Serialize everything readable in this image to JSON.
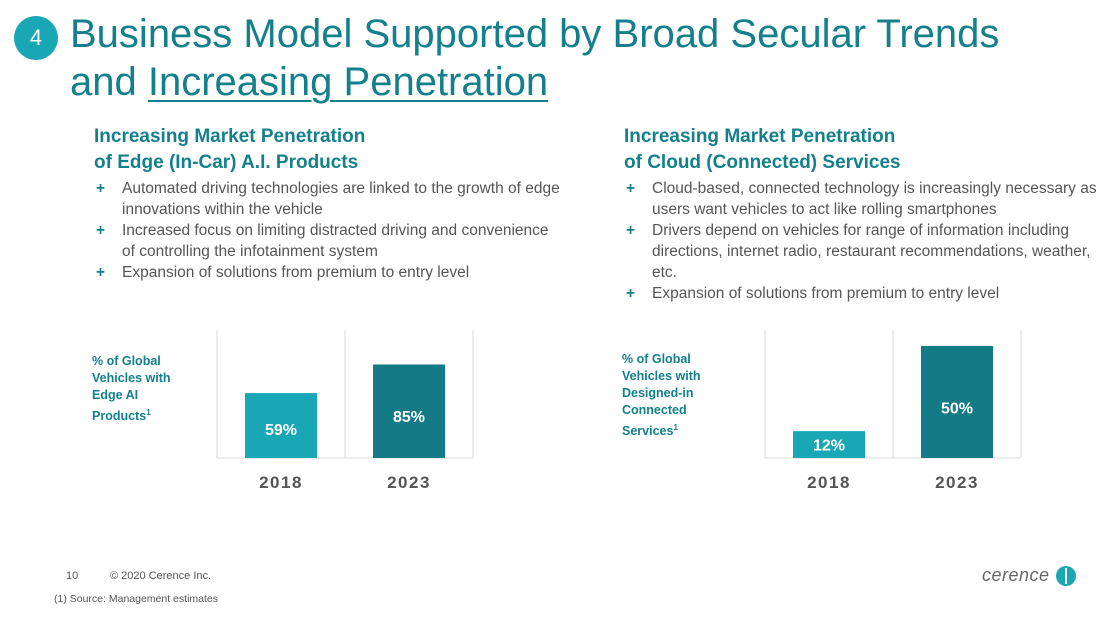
{
  "badge": "4",
  "title": {
    "line1": "Business Model Supported by Broad Secular Trends",
    "line2_prefix": "and ",
    "line2_underlined": "Increasing Penetration"
  },
  "left": {
    "heading1": "Increasing Market Penetration",
    "heading2": "of Edge (In-Car) A.I. Products",
    "bullets": [
      "Automated driving technologies are linked to the growth of edge innovations within the vehicle",
      "Increased focus on limiting distracted driving and convenience of controlling the infotainment system",
      "Expansion of solutions from premium to entry level"
    ],
    "chart_label": [
      "% of Global",
      "Vehicles with",
      "Edge AI",
      "Products"
    ]
  },
  "right": {
    "heading1": "Increasing Market Penetration",
    "heading2": "of Cloud (Connected) Services",
    "bullets": [
      "Cloud-based, connected technology is increasingly necessary as users want vehicles to act like rolling smartphones",
      "Drivers depend on vehicles for range of information including directions, internet radio, restaurant recommendations, weather, etc.",
      "Expansion of solutions from premium to entry level"
    ],
    "chart_label": [
      "% of Global",
      "Vehicles with",
      "Designed-in",
      "Connected",
      "Services"
    ]
  },
  "bullet_marker": "+",
  "footnote_marker": "1",
  "colors": {
    "teal_light": "#1aa7b5",
    "teal_dark": "#137a86",
    "heading": "#13808c"
  },
  "chart_data": [
    {
      "type": "bar",
      "categories": [
        "2018",
        "2023"
      ],
      "values": [
        59,
        85
      ],
      "labels": [
        "59%",
        "85%"
      ],
      "colors": [
        "#1aa7b5",
        "#137a86"
      ],
      "ylim": [
        0,
        100
      ]
    },
    {
      "type": "bar",
      "categories": [
        "2018",
        "2023"
      ],
      "values": [
        12,
        50
      ],
      "labels": [
        "12%",
        "50%"
      ],
      "colors": [
        "#1aa7b5",
        "#137a86"
      ],
      "ylim": [
        0,
        50
      ]
    }
  ],
  "footer": {
    "page": "10",
    "copyright": "© 2020 Cerence Inc.",
    "footnote": "(1)  Source: Management estimates",
    "logo": "cerence"
  }
}
